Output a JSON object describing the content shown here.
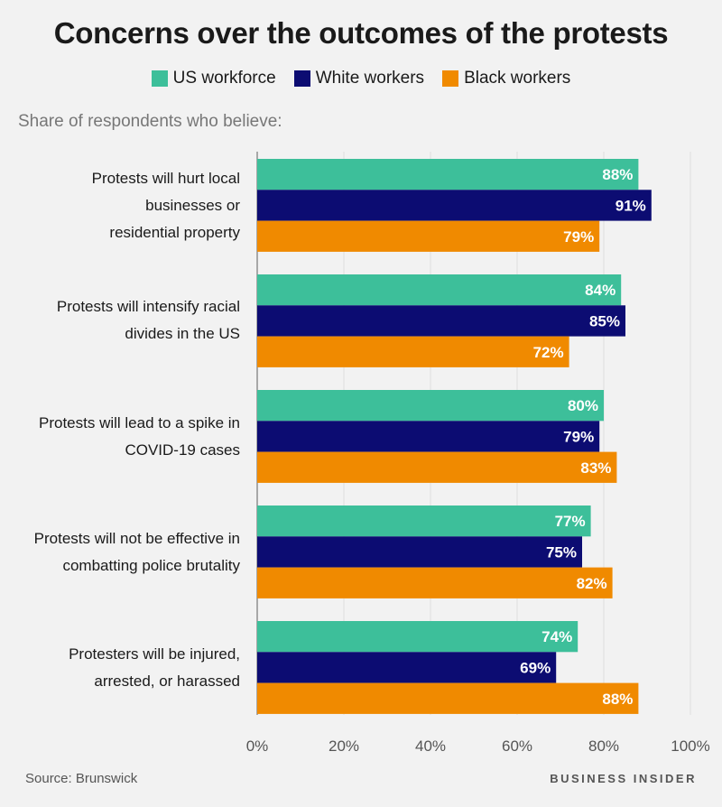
{
  "chart_data": {
    "type": "bar",
    "orientation": "horizontal",
    "title": "Concerns over the outcomes of the protests",
    "subtitle": "Share of respondents who believe:",
    "categories": [
      "Protests will hurt local\nbusinesses or\nresidential property",
      "Protests will intensify racial\ndivides in the US",
      "Protests will lead to a spike in\nCOVID-19 cases",
      "Protests will not be effective in\ncombatting police brutality",
      "Protesters will be injured,\narrested, or harassed"
    ],
    "series": [
      {
        "name": "US workforce",
        "color": "#3dbf9a",
        "values": [
          88,
          84,
          80,
          77,
          74
        ]
      },
      {
        "name": "White workers",
        "color": "#0c0c72",
        "values": [
          91,
          85,
          79,
          75,
          69
        ]
      },
      {
        "name": "Black workers",
        "color": "#f08a00",
        "values": [
          79,
          72,
          83,
          82,
          88
        ]
      }
    ],
    "xlim": [
      0,
      100
    ],
    "xticks": [
      0,
      20,
      40,
      60,
      80,
      100
    ],
    "tick_suffix": "%",
    "value_suffix": "%",
    "grid": true,
    "legend": "top-center"
  },
  "footer": {
    "source": "Source: Brunswick",
    "brand": "BUSINESS INSIDER"
  }
}
